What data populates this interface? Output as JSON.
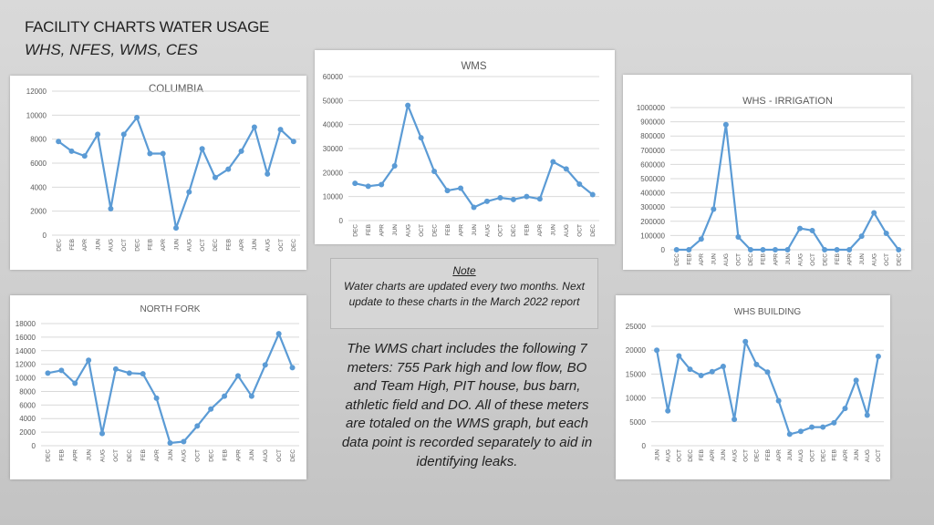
{
  "page": {
    "title": "FACILITY CHARTS WATER USAGE",
    "subtitle": "WHS, NFES, WMS, CES"
  },
  "note": {
    "heading": "Note",
    "text": "Water charts are updated every two months. Next update to these charts in the March 2022 report"
  },
  "description": "The WMS chart includes the following 7 meters: 755 Park high and low flow, BO and Team High, PIT house, bus barn, athletic field and DO. All of these meters are totaled on the WMS graph, but each data point is recorded separately to aid in identifying leaks.",
  "colors": {
    "line": "#5b9bd5",
    "grid": "#d9d9d9",
    "axis_text": "#595959"
  },
  "chart_data": [
    {
      "id": "columbia",
      "type": "line",
      "title": "COLUMBIA",
      "categories": [
        "DEC",
        "FEB",
        "APR",
        "JUN",
        "AUG",
        "OCT",
        "DEC",
        "FEB",
        "APR",
        "JUN",
        "AUG",
        "OCT",
        "DEC",
        "FEB",
        "APR",
        "JUN",
        "AUG",
        "OCT",
        "DEC"
      ],
      "values": [
        7800,
        7000,
        6600,
        8400,
        2200,
        8400,
        9800,
        6800,
        6800,
        600,
        3600,
        7200,
        4800,
        5500,
        7000,
        9000,
        5100,
        8800,
        7800
      ],
      "ylim": [
        0,
        12000
      ],
      "yticks": [
        0,
        2000,
        4000,
        6000,
        8000,
        10000,
        12000
      ]
    },
    {
      "id": "wms",
      "type": "line",
      "title": "WMS",
      "categories": [
        "DEC",
        "FEB",
        "APR",
        "JUN",
        "AUG",
        "OCT",
        "DEC",
        "FEB",
        "APR",
        "JUN",
        "AUG",
        "OCT",
        "DEC",
        "FEB",
        "APR",
        "JUN",
        "AUG",
        "OCT",
        "DEC"
      ],
      "values": [
        15500,
        14300,
        15000,
        22800,
        48000,
        34500,
        20500,
        12500,
        13500,
        5500,
        8000,
        9500,
        8800,
        10000,
        9000,
        24500,
        21500,
        15200,
        10800
      ],
      "ylim": [
        0,
        60000
      ],
      "yticks": [
        0,
        10000,
        20000,
        30000,
        40000,
        50000,
        60000
      ]
    },
    {
      "id": "whs_irrigation",
      "type": "line",
      "title": "WHS - IRRIGATION",
      "categories": [
        "DEC",
        "FEB",
        "APR",
        "JUN",
        "AUG",
        "OCT",
        "DEC",
        "FEB",
        "APR",
        "JUN",
        "AUG",
        "OCT",
        "DEC",
        "FEB",
        "APR",
        "JUN",
        "AUG",
        "OCT",
        "DEC"
      ],
      "values": [
        0,
        0,
        75000,
        285000,
        880000,
        90000,
        0,
        0,
        0,
        0,
        150000,
        135000,
        0,
        0,
        0,
        95000,
        260000,
        115000,
        0
      ],
      "ylim": [
        0,
        1000000
      ],
      "yticks": [
        0,
        100000,
        200000,
        300000,
        400000,
        500000,
        600000,
        700000,
        800000,
        900000,
        1000000
      ]
    },
    {
      "id": "north_fork",
      "type": "line",
      "title": "NORTH FORK",
      "categories": [
        "DEC",
        "FEB",
        "APR",
        "JUN",
        "AUG",
        "OCT",
        "DEC",
        "FEB",
        "APR",
        "JUN",
        "AUG",
        "OCT",
        "DEC",
        "FEB",
        "APR",
        "JUN",
        "AUG",
        "OCT",
        "DEC"
      ],
      "values": [
        10700,
        11100,
        9200,
        12600,
        1800,
        11300,
        10700,
        10600,
        7000,
        400,
        600,
        2900,
        5400,
        7300,
        10300,
        7300,
        11900,
        16500,
        11500
      ],
      "ylim": [
        0,
        18000
      ],
      "yticks": [
        0,
        2000,
        4000,
        6000,
        8000,
        10000,
        12000,
        14000,
        16000,
        18000
      ]
    },
    {
      "id": "whs_building",
      "type": "line",
      "title": "WHS BUILDING",
      "categories": [
        "JUN",
        "AUG",
        "OCT",
        "DEC",
        "FEB",
        "APR",
        "JUN",
        "AUG",
        "OCT",
        "DEC",
        "FEB",
        "APR",
        "JUN",
        "AUG",
        "OCT",
        "DEC",
        "FEB",
        "APR",
        "JUN",
        "AUG",
        "OCT"
      ],
      "values": [
        20000,
        7300,
        18800,
        16000,
        14700,
        15500,
        16600,
        5500,
        21800,
        17000,
        15400,
        9400,
        2400,
        3000,
        3900,
        3900,
        4800,
        7800,
        13700,
        6400,
        18700
      ],
      "ylim": [
        0,
        25000
      ],
      "yticks": [
        0,
        5000,
        10000,
        15000,
        20000,
        25000
      ]
    }
  ]
}
